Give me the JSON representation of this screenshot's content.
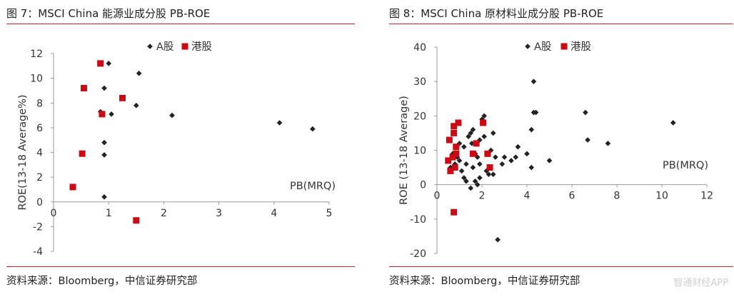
{
  "chart_data": [
    {
      "type": "scatter",
      "title": "图 7：MSCI China 能源业成分股 PB-ROE",
      "source": "资料来源：Bloomberg，中信证券研究部",
      "xlabel": "PB(MRQ)",
      "ylabel": "ROE(13-18 Average%)",
      "xlim": [
        0,
        5
      ],
      "ylim": [
        -4,
        12
      ],
      "xticks": [
        0,
        1,
        2,
        3,
        4,
        5
      ],
      "yticks": [
        -4,
        -2,
        0,
        2,
        4,
        6,
        8,
        10,
        12
      ],
      "xtick_labels": [
        "0",
        "1",
        "2",
        "3",
        "4",
        "5"
      ],
      "ytick_labels": [
        "-4",
        "-2",
        "0",
        "2",
        "4",
        "6",
        "8",
        "10",
        "12"
      ],
      "legend_position": "top",
      "grid": false,
      "series": [
        {
          "name": "A股",
          "marker": "diamond",
          "color": "#222222",
          "points": [
            [
              1.0,
              11.2
            ],
            [
              1.55,
              10.4
            ],
            [
              0.92,
              9.2
            ],
            [
              0.85,
              7.3
            ],
            [
              1.05,
              7.1
            ],
            [
              1.5,
              7.8
            ],
            [
              2.15,
              7.0
            ],
            [
              0.92,
              4.8
            ],
            [
              0.92,
              3.8
            ],
            [
              0.92,
              0.4
            ],
            [
              4.1,
              6.4
            ],
            [
              4.7,
              5.9
            ]
          ]
        },
        {
          "name": "港股",
          "marker": "square",
          "color": "#cc0a14",
          "points": [
            [
              0.85,
              11.2
            ],
            [
              0.55,
              9.2
            ],
            [
              1.25,
              8.4
            ],
            [
              0.88,
              7.1
            ],
            [
              0.52,
              3.9
            ],
            [
              0.35,
              1.2
            ],
            [
              1.5,
              -1.5
            ]
          ]
        }
      ]
    },
    {
      "type": "scatter",
      "title": "图 8：MSCI China 原材料业成分股 PB-ROE",
      "source": "资料来源：Bloomberg，中信证券研究部",
      "xlabel": "PB(MRQ)",
      "ylabel": "ROE (13-18 Average)",
      "xlim": [
        0,
        12
      ],
      "ylim": [
        -20,
        40
      ],
      "xticks": [
        0,
        2,
        4,
        6,
        8,
        10,
        12
      ],
      "yticks": [
        -20,
        -10,
        0,
        10,
        20,
        30,
        40
      ],
      "xtick_labels": [
        "0",
        "2",
        "4",
        "6",
        "8",
        "10",
        "12"
      ],
      "ytick_labels": [
        "-20",
        "-10",
        "0",
        "10",
        "20",
        "30",
        "40"
      ],
      "legend_position": "top",
      "grid": false,
      "series": [
        {
          "name": "A股",
          "marker": "diamond",
          "color": "#222222",
          "points": [
            [
              0.6,
              5
            ],
            [
              0.8,
              6
            ],
            [
              0.9,
              8
            ],
            [
              1.0,
              7
            ],
            [
              1.1,
              4
            ],
            [
              1.2,
              2
            ],
            [
              1.3,
              1
            ],
            [
              1.4,
              14
            ],
            [
              1.5,
              15
            ],
            [
              1.6,
              16
            ],
            [
              1.55,
              12
            ],
            [
              1.7,
              9
            ],
            [
              1.8,
              8
            ],
            [
              1.9,
              6
            ],
            [
              1.5,
              -1
            ],
            [
              1.7,
              1
            ],
            [
              1.8,
              0
            ],
            [
              1.9,
              2
            ],
            [
              2.0,
              19
            ],
            [
              2.1,
              20
            ],
            [
              2.2,
              4
            ],
            [
              2.3,
              3
            ],
            [
              2.4,
              10
            ],
            [
              2.5,
              15
            ],
            [
              2.5,
              3
            ],
            [
              2.6,
              8
            ],
            [
              1.9,
              13
            ],
            [
              2.9,
              6
            ],
            [
              3.0,
              8
            ],
            [
              3.3,
              7
            ],
            [
              3.5,
              8
            ],
            [
              3.6,
              11
            ],
            [
              4.0,
              9
            ],
            [
              4.2,
              16
            ],
            [
              4.2,
              5
            ],
            [
              4.3,
              30
            ],
            [
              4.3,
              21
            ],
            [
              4.4,
              21
            ],
            [
              5.0,
              7
            ],
            [
              6.6,
              21
            ],
            [
              6.7,
              13
            ],
            [
              7.6,
              12
            ],
            [
              10.5,
              18
            ],
            [
              2.7,
              -16
            ],
            [
              1.2,
              11
            ],
            [
              1.3,
              6
            ],
            [
              1.6,
              5
            ],
            [
              2.1,
              14
            ],
            [
              0.7,
              9
            ],
            [
              1.0,
              12
            ]
          ]
        },
        {
          "name": "港股",
          "marker": "square",
          "color": "#cc0a14",
          "points": [
            [
              0.95,
              18
            ],
            [
              0.75,
              17
            ],
            [
              0.75,
              15
            ],
            [
              0.55,
              13
            ],
            [
              0.85,
              11
            ],
            [
              0.85,
              9
            ],
            [
              0.7,
              8
            ],
            [
              0.5,
              7
            ],
            [
              0.8,
              5
            ],
            [
              0.6,
              4
            ],
            [
              1.75,
              12
            ],
            [
              1.6,
              9
            ],
            [
              2.05,
              18
            ],
            [
              2.25,
              9
            ],
            [
              2.35,
              5
            ],
            [
              0.75,
              -8
            ]
          ]
        }
      ]
    }
  ],
  "watermark": "智通财经APP"
}
